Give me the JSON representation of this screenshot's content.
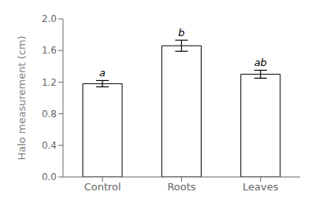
{
  "chart_data": {
    "type": "bar",
    "categories": [
      "Control",
      "Roots",
      "Leaves"
    ],
    "values": [
      1.18,
      1.66,
      1.3
    ],
    "errors": [
      0.04,
      0.07,
      0.05
    ],
    "annotations": [
      "a",
      "b",
      "ab"
    ],
    "ylabel": "Halo measurement (cm)",
    "ylim": [
      0.0,
      2.0
    ],
    "yticks": [
      {
        "value": 0.0,
        "label": "0.0"
      },
      0.4,
      0.8,
      1.2,
      1.6,
      {
        "value": 2.0,
        "label": "2.0"
      }
    ],
    "color": "#ffffff",
    "grid": false
  }
}
